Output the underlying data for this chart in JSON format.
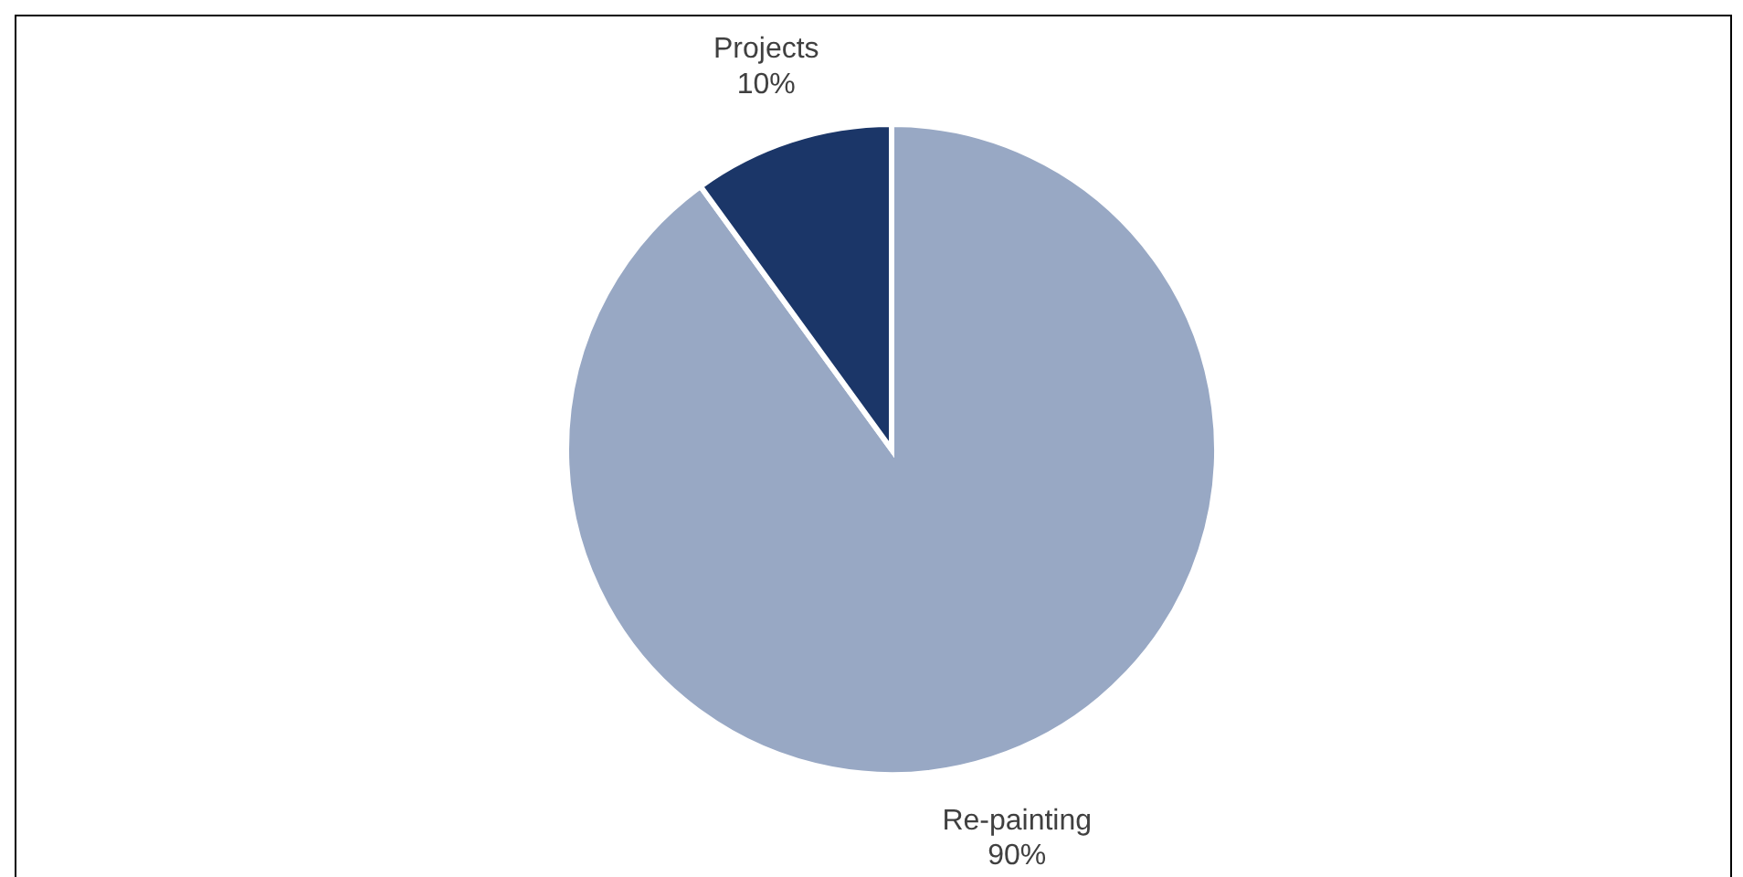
{
  "chart_data": {
    "type": "pie",
    "categories": [
      "Re-painting",
      "Projects"
    ],
    "values": [
      90,
      10
    ],
    "colors": [
      "#98a8c4",
      "#1b3668"
    ],
    "value_labels": [
      "90%",
      "10%"
    ]
  }
}
